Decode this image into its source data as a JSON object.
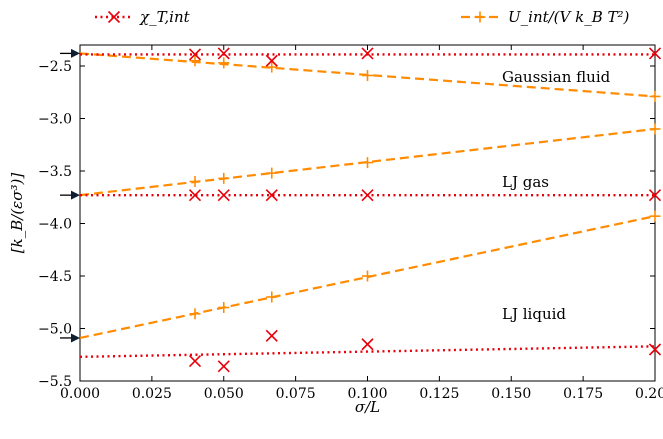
{
  "chart_data": {
    "type": "line",
    "title": "",
    "xlabel": "σ/L",
    "ylabel": "[k_B/(εσ³)]",
    "xlim": [
      0.0,
      0.2
    ],
    "ylim": [
      -5.5,
      -2.3
    ],
    "xticks": [
      "0.000",
      "0.025",
      "0.050",
      "0.075",
      "0.100",
      "0.125",
      "0.150",
      "0.175",
      "0.200"
    ],
    "yticks": [
      "−2.5",
      "−3.0",
      "−3.5",
      "−4.0",
      "−4.5",
      "−5.0",
      "−5.5"
    ],
    "legend": {
      "placement": "top",
      "entries": [
        {
          "label": "χ_T,int",
          "color": "#e8000b",
          "style": "dotted",
          "marker": "x"
        },
        {
          "label": "U_int/(V k_B T²)",
          "color": "#ff8c00",
          "style": "dashed",
          "marker": "+"
        }
      ]
    },
    "annotations": [
      "Gaussian fluid",
      "LJ gas",
      "LJ liquid"
    ],
    "arrows_at_y": [
      -2.38,
      -3.73,
      -5.09
    ],
    "colors": {
      "chi": "#e8000b",
      "u": "#ff8c00"
    },
    "series": [
      {
        "group": "Gaussian fluid",
        "kind": "U",
        "x": [
          0.04,
          0.05,
          0.0667,
          0.1,
          0.2
        ],
        "y": [
          -2.45,
          -2.47,
          -2.51,
          -2.59,
          -2.79
        ],
        "fit": [
          [
            0.0,
            -2.38
          ],
          [
            0.2,
            -2.79
          ]
        ]
      },
      {
        "group": "Gaussian fluid",
        "kind": "chi",
        "x": [
          0.04,
          0.05,
          0.0667,
          0.1,
          0.2
        ],
        "y": [
          -2.39,
          -2.38,
          -2.45,
          -2.38,
          -2.38
        ],
        "fit": [
          [
            0.0,
            -2.39
          ],
          [
            0.2,
            -2.39
          ]
        ]
      },
      {
        "group": "LJ gas",
        "kind": "U",
        "x": [
          0.04,
          0.05,
          0.0667,
          0.1,
          0.2
        ],
        "y": [
          -3.6,
          -3.57,
          -3.52,
          -3.42,
          -3.1
        ],
        "fit": [
          [
            0.0,
            -3.73
          ],
          [
            0.2,
            -3.1
          ]
        ]
      },
      {
        "group": "LJ gas",
        "kind": "chi",
        "x": [
          0.04,
          0.05,
          0.0667,
          0.1,
          0.2
        ],
        "y": [
          -3.73,
          -3.73,
          -3.73,
          -3.73,
          -3.73
        ],
        "fit": [
          [
            0.0,
            -3.73
          ],
          [
            0.2,
            -3.73
          ]
        ]
      },
      {
        "group": "LJ liquid",
        "kind": "U",
        "x": [
          0.04,
          0.05,
          0.0667,
          0.1,
          0.2
        ],
        "y": [
          -4.86,
          -4.8,
          -4.7,
          -4.5,
          -3.93
        ],
        "fit": [
          [
            0.0,
            -5.09
          ],
          [
            0.2,
            -3.93
          ]
        ]
      },
      {
        "group": "LJ liquid",
        "kind": "chi",
        "x": [
          0.04,
          0.05,
          0.0667,
          0.1,
          0.2
        ],
        "y": [
          -5.31,
          -5.36,
          -5.07,
          -5.15,
          -5.2
        ],
        "fit": [
          [
            0.0,
            -5.27
          ],
          [
            0.2,
            -5.17
          ]
        ]
      }
    ]
  }
}
